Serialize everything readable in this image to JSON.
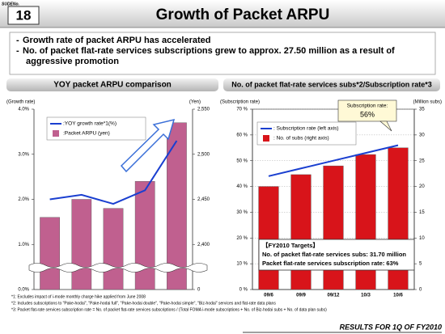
{
  "header": {
    "slide_label": "SUDENo.",
    "slide_number": "18",
    "title": "Growth of Packet ARPU"
  },
  "bullets": [
    "Growth rate of packet ARPU has accelerated",
    [
      "No. of packet flat-rate services subscriptions grew to approx. 27.50 million as a result of",
      "aggressive promotion"
    ]
  ],
  "chart_data": [
    {
      "type": "combo",
      "title": "YOY packet ARPU comparison",
      "y_label": "(Growth rate)",
      "y2_label": "(Yen)",
      "categories": [
        "09/6",
        "09/9",
        "09/12",
        "10/3",
        "10/6"
      ],
      "series": [
        {
          "name": ":YOY growth rate*1(%)",
          "type": "line",
          "color": "#1a3fd0",
          "values": [
            2.0,
            2.1,
            1.9,
            2.2,
            3.3
          ]
        },
        {
          "name": ":Packet ARPU (yen)",
          "type": "bar",
          "axis": "y2",
          "color": "#c0608f",
          "values": [
            2430,
            2450,
            2440,
            2470,
            2535
          ]
        }
      ],
      "ylim": [
        0,
        4
      ],
      "yticks": [
        {
          "value": 0,
          "label": "0.0%"
        },
        {
          "value": 1,
          "label": "1.0%"
        },
        {
          "value": 2,
          "label": "2.0%"
        },
        {
          "value": 3,
          "label": "3.0%"
        },
        {
          "value": 4,
          "label": "4.0%"
        }
      ],
      "y2lim": [
        0,
        2550
      ],
      "y2_axis_break": [
        0,
        2350
      ],
      "y2ticks": [
        0,
        {
          "value": 2400,
          "label": "2,400"
        },
        {
          "value": 2450,
          "label": "2,450"
        },
        {
          "value": 2500,
          "label": "2,500"
        },
        {
          "value": 2550,
          "label": "2,550"
        }
      ],
      "grid": false,
      "legend": "top-left"
    },
    {
      "type": "combo",
      "title": "No. of packet flat-rate services subs*2/Subscription rate*3",
      "y_label": "(Subscription rate)",
      "y2_label": "(Million subs)",
      "categories": [
        "09/6",
        "09/9",
        "09/12",
        "10/3",
        "10/6"
      ],
      "series": [
        {
          "name": ": Subscription rate (left axis)",
          "type": "line",
          "color": "#1a3fd0",
          "values": [
            44,
            47,
            50,
            53,
            56
          ]
        },
        {
          "name": ": No. of subs (right axis)",
          "type": "bar",
          "axis": "y2",
          "color": "#d8141a",
          "values": [
            20.0,
            22.3,
            24.0,
            26.2,
            27.5
          ]
        }
      ],
      "ylim": [
        0,
        70
      ],
      "yticks": [
        {
          "value": 0,
          "label": "0 %"
        },
        {
          "value": 10,
          "label": "10 %"
        },
        {
          "value": 20,
          "label": "20 %"
        },
        {
          "value": 30,
          "label": "30 %"
        },
        {
          "value": 40,
          "label": "40 %"
        },
        {
          "value": 50,
          "label": "50 %"
        },
        {
          "value": 60,
          "label": "60 %"
        },
        {
          "value": 70,
          "label": "70 %"
        }
      ],
      "y2lim": [
        0,
        35
      ],
      "y2ticks": [
        0,
        5,
        10,
        15,
        20,
        25,
        30,
        35
      ],
      "grid": true,
      "legend": "top-left",
      "callout": [
        "Subscription rate:",
        "56%"
      ],
      "targets": [
        "【FY2010 Targets】",
        "No. of packet flat-rate services subs:  31.70 million",
        "Packet flat-rate services subscription rate: 63%"
      ]
    }
  ],
  "notes": [
    "*1: Excludes impact of i-mode monthly charge hike applied from June 2008",
    "*2: Includes subscriptions to \"Pake-hodai\", \"Pake-hodai full\", \"Pake-hodai double\", \"Pake-hodai simple\", \"Biz-hodai\" services and flat-rate data plans",
    "*3: Packet flat-rate services subscription rate = No. of packet flat-rate services subscriptions / (Total FOMA i-mode subscriptions + No. of Biz-hodai subs + No. of data plan subs)"
  ],
  "footer": "RESULTS FOR 1Q OF FY2010"
}
